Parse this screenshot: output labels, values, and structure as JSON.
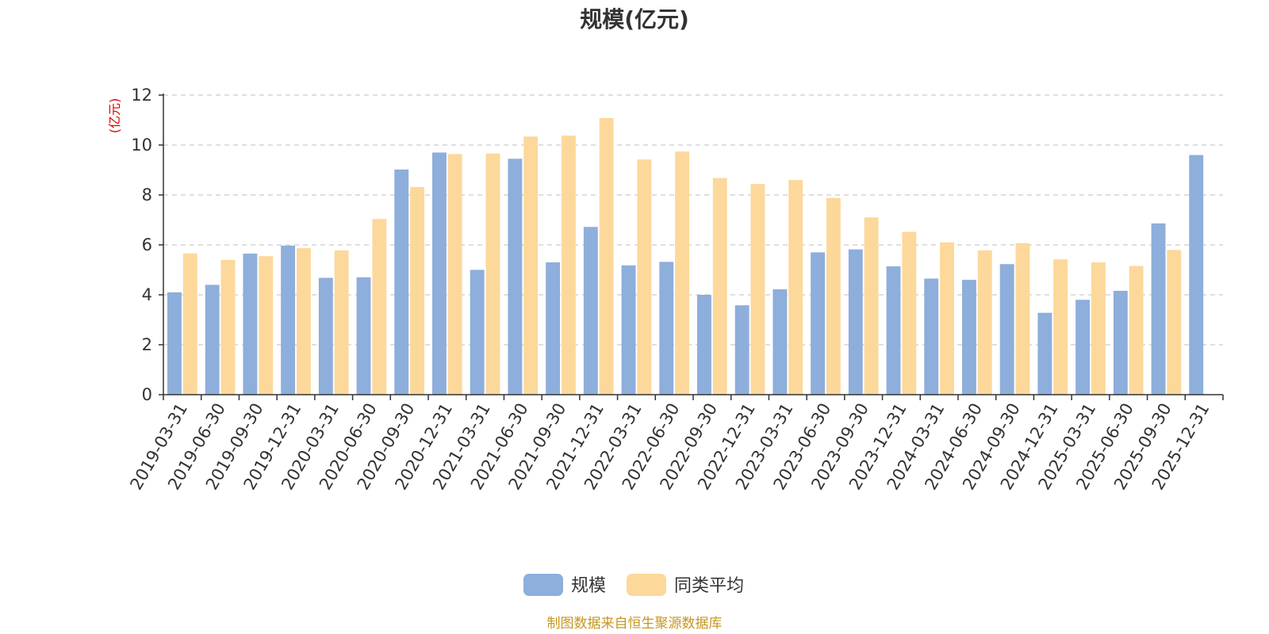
{
  "chart_data": {
    "type": "bar",
    "title": "规模(亿元)",
    "ylabel": "(亿元)",
    "ylim": [
      0,
      12
    ],
    "yticks": [
      0,
      2,
      4,
      6,
      8,
      10,
      12
    ],
    "grid": true,
    "legend_position": "bottom-center",
    "categories": [
      "2019-03-31",
      "2019-06-30",
      "2019-09-30",
      "2019-12-31",
      "2020-03-31",
      "2020-06-30",
      "2020-09-30",
      "2020-12-31",
      "2021-03-31",
      "2021-06-30",
      "2021-09-30",
      "2021-12-31",
      "2022-03-31",
      "2022-06-30",
      "2022-09-30",
      "2022-12-31",
      "2023-03-31",
      "2023-06-30",
      "2023-09-30",
      "2023-12-31",
      "2024-03-31",
      "2024-06-30",
      "2024-09-30",
      "2024-12-31",
      "2025-03-31",
      "2025-06-30",
      "2025-09-30",
      "2025-12-31"
    ],
    "series": [
      {
        "name": "规模",
        "color": "#8eaedb",
        "values": [
          4.1,
          4.4,
          5.65,
          5.97,
          4.68,
          4.7,
          9.02,
          9.7,
          5.0,
          9.45,
          5.3,
          6.72,
          5.18,
          5.32,
          4.0,
          3.58,
          4.22,
          5.7,
          5.82,
          5.14,
          4.65,
          4.6,
          5.23,
          3.28,
          3.8,
          4.16,
          6.86,
          9.6
        ]
      },
      {
        "name": "同类平均",
        "color": "#fdd89b",
        "values": [
          5.66,
          5.4,
          5.55,
          5.87,
          5.78,
          7.04,
          8.32,
          9.64,
          9.66,
          10.34,
          10.38,
          11.08,
          9.42,
          9.74,
          8.68,
          8.44,
          8.6,
          7.88,
          7.1,
          6.52,
          6.1,
          5.78,
          6.07,
          5.42,
          5.3,
          5.16,
          5.8,
          null
        ]
      }
    ]
  },
  "footer": {
    "source": "制图数据来自恒生聚源数据库"
  }
}
